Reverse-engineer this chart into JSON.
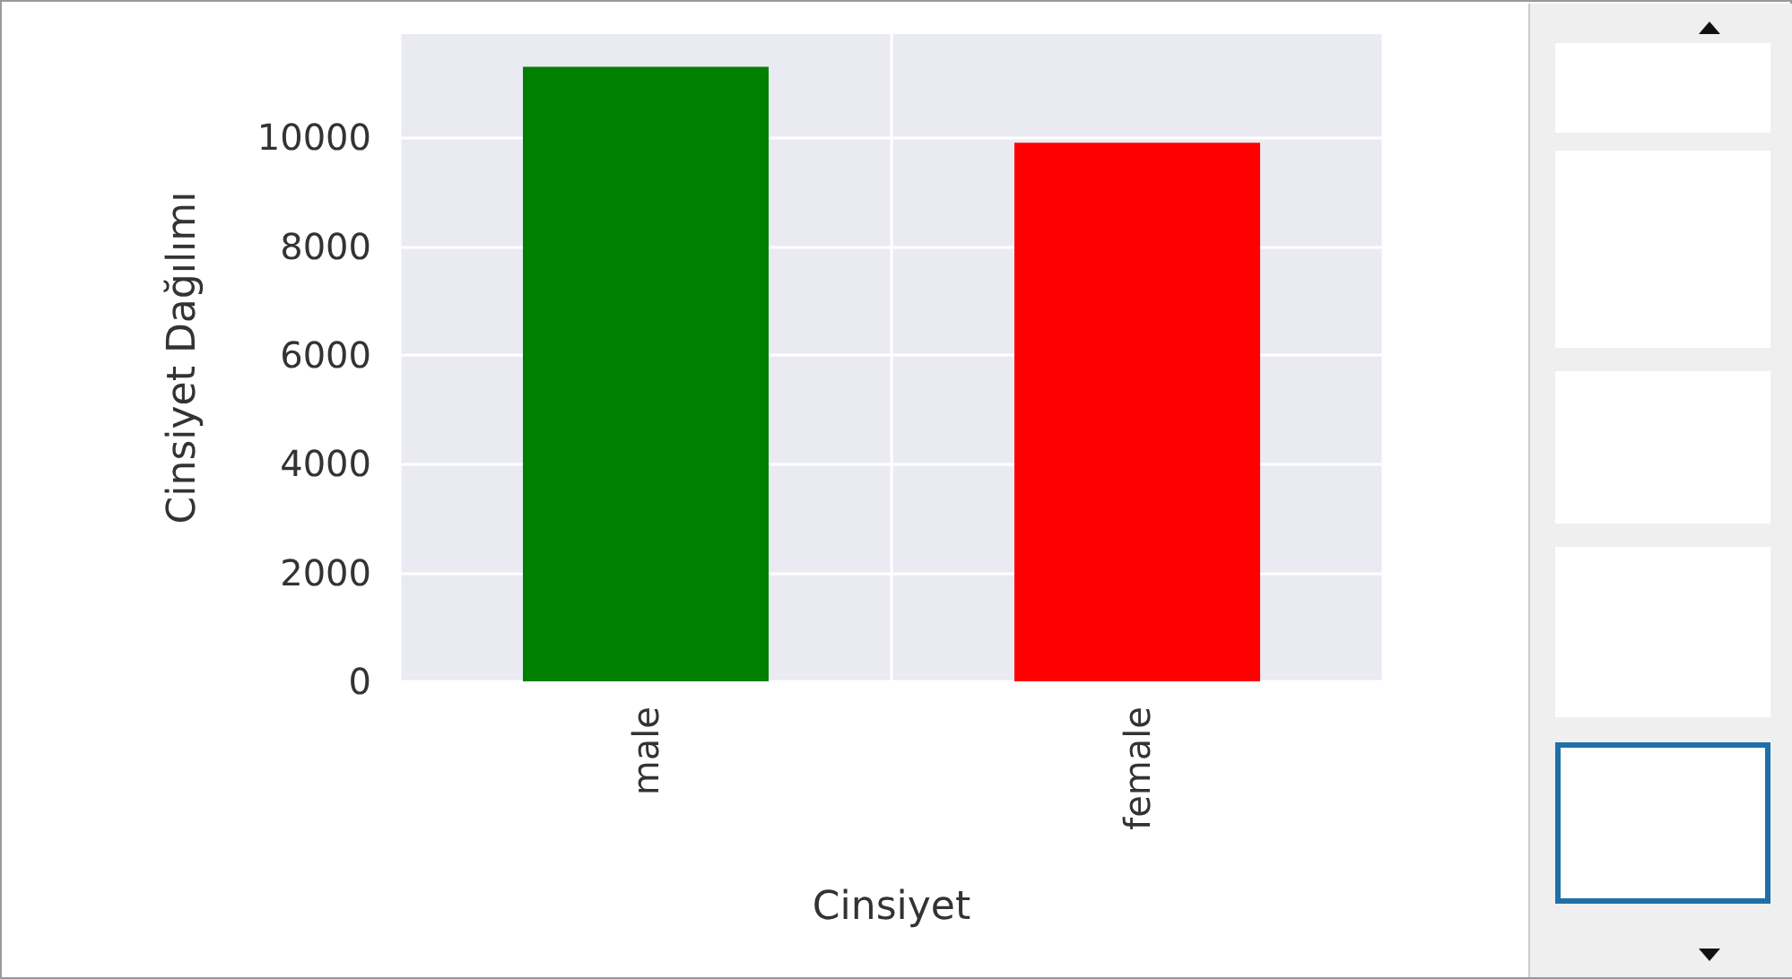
{
  "chart_data": {
    "type": "bar",
    "xlabel": "Cinsiyet",
    "ylabel": "Cinsiyet Dağılımı",
    "categories": [
      "male",
      "female"
    ],
    "values": [
      11300,
      9900
    ],
    "colors": [
      "#008000",
      "#ff0000"
    ],
    "ylim": [
      0,
      11900
    ],
    "yticks": [
      0,
      2000,
      4000,
      6000,
      8000,
      10000
    ],
    "grid": true
  }
}
